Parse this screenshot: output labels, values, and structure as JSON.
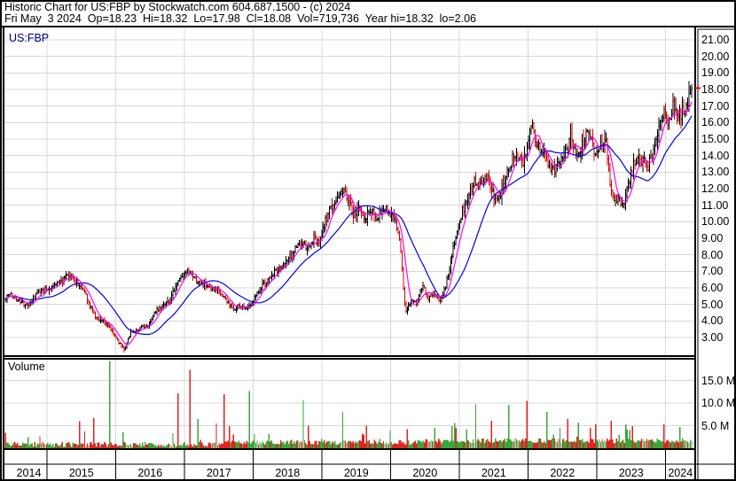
{
  "header": {
    "line1": "Historic Chart for US:FBP by Stockwatch.com 604.687.1500 - (c) 2024",
    "line2": "Fri May  3 2024  Op=18.23  Hi=18.32  Lo=17.98  Cl=18.08  Vol=719,736  Year hi=18.32  lo=2.06"
  },
  "chart": {
    "symbol_label": "US:FBP",
    "volume_label": "Volume"
  },
  "chart_data": {
    "type": "candlestick+volume",
    "title": "Historic Chart for US:FBP",
    "x_axis": {
      "year_labels": [
        "2014",
        "2015",
        "2016",
        "2017",
        "2018",
        "2019",
        "2020",
        "2021",
        "2022",
        "2023",
        "2024"
      ]
    },
    "price_axis": {
      "ticks": [
        21,
        20,
        19,
        18,
        17,
        16,
        15,
        14,
        13,
        12,
        11,
        10,
        9,
        8,
        7,
        6,
        5,
        4,
        3
      ],
      "labels": [
        "21.00",
        "20.00",
        "19.00",
        "18.00",
        "17.00",
        "16.00",
        "15.00",
        "14.00",
        "13.00",
        "12.00",
        "11.00",
        "10.00",
        "9.00",
        "8.00",
        "7.00",
        "6.00",
        "5.00",
        "4.00",
        "3.00"
      ]
    },
    "volume_axis": {
      "ticks_m": [
        15,
        10,
        5
      ],
      "labels": [
        "15.0 M",
        "10.0 M",
        "5.0 M"
      ]
    },
    "last_trade": {
      "date": "Fri May 3 2024",
      "open": 18.23,
      "high": 18.32,
      "low": 17.98,
      "close": 18.08,
      "volume": "719,736",
      "year_high": 18.32,
      "year_low": 2.06
    },
    "monthly_closes": {
      "start_label": "2014-05",
      "end_label": "2024-05",
      "start_year_frac": 2014.38,
      "values": [
        5.3,
        5.6,
        5.4,
        5.1,
        4.9,
        5.3,
        5.8,
        5.9,
        6.0,
        6.3,
        6.4,
        6.7,
        6.6,
        6.2,
        5.8,
        4.9,
        4.2,
        4.0,
        3.8,
        3.3,
        2.7,
        2.3,
        3.3,
        3.4,
        3.6,
        3.7,
        4.3,
        4.8,
        5.1,
        5.3,
        6.2,
        6.7,
        6.9,
        6.6,
        6.3,
        6.2,
        5.8,
        5.9,
        5.6,
        5.1,
        4.7,
        4.9,
        4.8,
        5.0,
        5.7,
        6.1,
        6.5,
        6.9,
        7.2,
        7.5,
        7.9,
        8.5,
        8.7,
        8.3,
        9.0,
        8.6,
        10.0,
        10.8,
        11.3,
        11.9,
        11.4,
        10.3,
        10.9,
        10.2,
        10.6,
        10.3,
        10.7,
        10.6,
        10.4,
        9.0,
        4.5,
        5.2,
        5.0,
        6.2,
        5.4,
        5.8,
        5.2,
        6.0,
        7.8,
        9.2,
        10.6,
        11.5,
        12.5,
        12.2,
        12.9,
        12.2,
        11.2,
        12.2,
        13.0,
        14.2,
        13.6,
        13.8,
        15.8,
        14.8,
        14.2,
        13.4,
        13.0,
        13.6,
        14.2,
        15.1,
        13.9,
        14.8,
        15.7,
        14.2,
        14.6,
        14.9,
        11.6,
        11.4,
        11.0,
        12.2,
        13.6,
        13.9,
        13.4,
        13.6,
        15.2,
        16.4,
        16.2,
        17.2,
        16.5,
        17.0,
        18.08
      ]
    },
    "min_low": 2.06,
    "volume_spikes_m": [
      {
        "t": 2014.72,
        "m": 2.5,
        "dir": "up"
      },
      {
        "t": 2015.48,
        "m": 6.0,
        "dir": "down"
      },
      {
        "t": 2015.68,
        "m": 6.7,
        "dir": "down"
      },
      {
        "t": 2015.92,
        "m": 19.3,
        "dir": "up"
      },
      {
        "t": 2016.1,
        "m": 3.5,
        "dir": "up"
      },
      {
        "t": 2016.9,
        "m": 12.2,
        "dir": "down"
      },
      {
        "t": 2017.08,
        "m": 17.4,
        "dir": "down"
      },
      {
        "t": 2017.19,
        "m": 6.5,
        "dir": "up"
      },
      {
        "t": 2017.46,
        "m": 5.5,
        "dir": "down"
      },
      {
        "t": 2017.57,
        "m": 12.0,
        "dir": "down"
      },
      {
        "t": 2017.94,
        "m": 12.6,
        "dir": "up"
      },
      {
        "t": 2018.72,
        "m": 10.7,
        "dir": "up"
      },
      {
        "t": 2018.81,
        "m": 5.0,
        "dir": "down"
      },
      {
        "t": 2019.3,
        "m": 8.0,
        "dir": "up"
      },
      {
        "t": 2019.65,
        "m": 5.0,
        "dir": "down"
      },
      {
        "t": 2019.99,
        "m": 4.0,
        "dir": "up"
      },
      {
        "t": 2020.25,
        "m": 4.2,
        "dir": "down"
      },
      {
        "t": 2020.64,
        "m": 4.5,
        "dir": "up"
      },
      {
        "t": 2020.96,
        "m": 4.5,
        "dir": "down"
      },
      {
        "t": 2021.23,
        "m": 9.7,
        "dir": "up"
      },
      {
        "t": 2021.47,
        "m": 6.1,
        "dir": "down"
      },
      {
        "t": 2021.72,
        "m": 9.6,
        "dir": "up"
      },
      {
        "t": 2021.98,
        "m": 10.5,
        "dir": "down"
      },
      {
        "t": 2022.27,
        "m": 8.0,
        "dir": "up"
      },
      {
        "t": 2022.46,
        "m": 4.5,
        "dir": "up"
      },
      {
        "t": 2022.74,
        "m": 5.7,
        "dir": "up"
      },
      {
        "t": 2022.99,
        "m": 5.3,
        "dir": "down"
      },
      {
        "t": 2023.22,
        "m": 6.1,
        "dir": "down"
      },
      {
        "t": 2023.48,
        "m": 4.0,
        "dir": "up"
      },
      {
        "t": 2023.97,
        "m": 5.3,
        "dir": "down"
      },
      {
        "t": 2024.2,
        "m": 4.7,
        "dir": "up"
      }
    ],
    "moving_averages": [
      {
        "name": "fast-sma",
        "weeks": 8,
        "color": "#ff00ff"
      },
      {
        "name": "slow-sma",
        "weeks": 30,
        "color": "#0000ee"
      }
    ],
    "colors": {
      "bar_up": "#000000",
      "bar_down": "#d40000",
      "volume_up": "#3aa63a",
      "volume_down": "#e32222",
      "grid": "#d8d8d8",
      "frame": "#000000",
      "symbol_text": "#00007f",
      "last_price_marker": "#ff0000"
    }
  }
}
